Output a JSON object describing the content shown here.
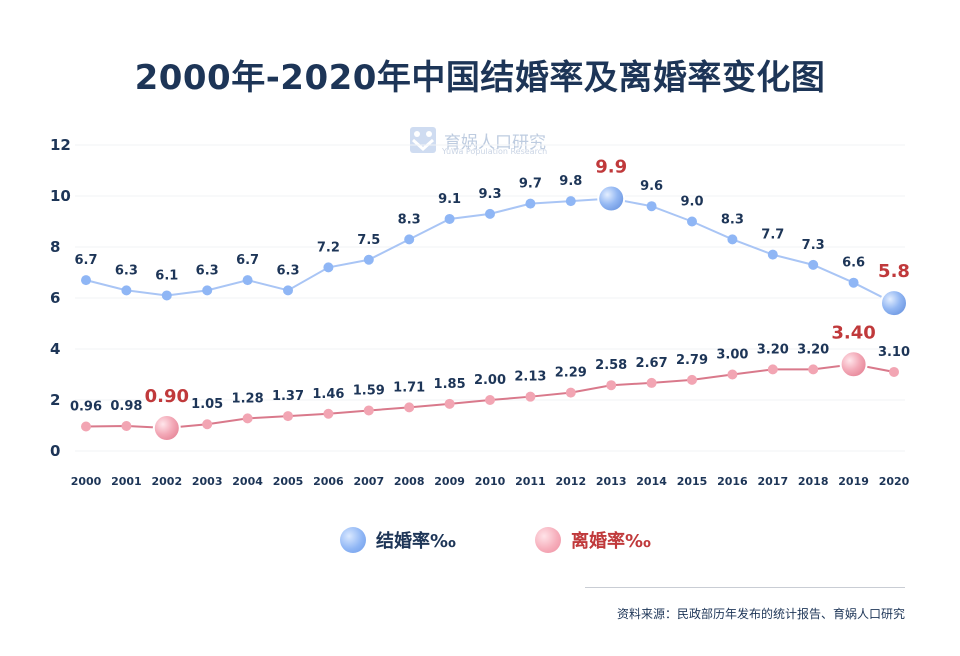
{
  "title": "2000年-2020年中国结婚率及离婚率变化图",
  "watermark": {
    "name": "育娲人口研究",
    "sub": "YuWa Population Research"
  },
  "legend": {
    "marriage": "结婚率‰",
    "divorce": "离婚率‰"
  },
  "source": "资料来源：民政部历年发布的统计报告、育娲人口研究",
  "colors": {
    "marriage": "#8fb6f5",
    "divorce": "#e98a9c",
    "highlight": "#c0393b",
    "text": "#1d3557"
  },
  "chart_data": {
    "type": "line",
    "title": "2000年-2020年中国结婚率及离婚率变化图",
    "categories": [
      "2000",
      "2001",
      "2002",
      "2003",
      "2004",
      "2005",
      "2006",
      "2007",
      "2008",
      "2009",
      "2010",
      "2011",
      "2012",
      "2013",
      "2014",
      "2015",
      "2016",
      "2017",
      "2018",
      "2019",
      "2020"
    ],
    "ylim": [
      0,
      12
    ],
    "yticks": [
      0,
      2,
      4,
      6,
      8,
      10,
      12
    ],
    "grid": false,
    "series": [
      {
        "name": "结婚率‰",
        "values": [
          6.7,
          6.3,
          6.1,
          6.3,
          6.7,
          6.3,
          7.2,
          7.5,
          8.3,
          9.1,
          9.3,
          9.7,
          9.8,
          9.9,
          9.6,
          9.0,
          8.3,
          7.7,
          7.3,
          6.6,
          5.8
        ],
        "labels": [
          "6.7",
          "6.3",
          "6.1",
          "6.3",
          "6.7",
          "6.3",
          "7.2",
          "7.5",
          "8.3",
          "9.1",
          "9.3",
          "9.7",
          "9.8",
          "9.9",
          "9.6",
          "9.0",
          "8.3",
          "7.7",
          "7.3",
          "6.6",
          "5.8"
        ],
        "highlight": [
          "2013",
          "2020"
        ]
      },
      {
        "name": "离婚率‰",
        "values": [
          0.96,
          0.98,
          0.9,
          1.05,
          1.28,
          1.37,
          1.46,
          1.59,
          1.71,
          1.85,
          2.0,
          2.13,
          2.29,
          2.58,
          2.67,
          2.79,
          3.0,
          3.2,
          3.2,
          3.4,
          3.1
        ],
        "labels": [
          "0.96",
          "0.98",
          "0.90",
          "1.05",
          "1.28",
          "1.37",
          "1.46",
          "1.59",
          "1.71",
          "1.85",
          "2.00",
          "2.13",
          "2.29",
          "2.58",
          "2.67",
          "2.79",
          "3.00",
          "3.20",
          "3.20",
          "3.40",
          "3.10"
        ],
        "highlight": [
          "2002",
          "2019"
        ]
      }
    ],
    "legend_position": "bottom"
  }
}
